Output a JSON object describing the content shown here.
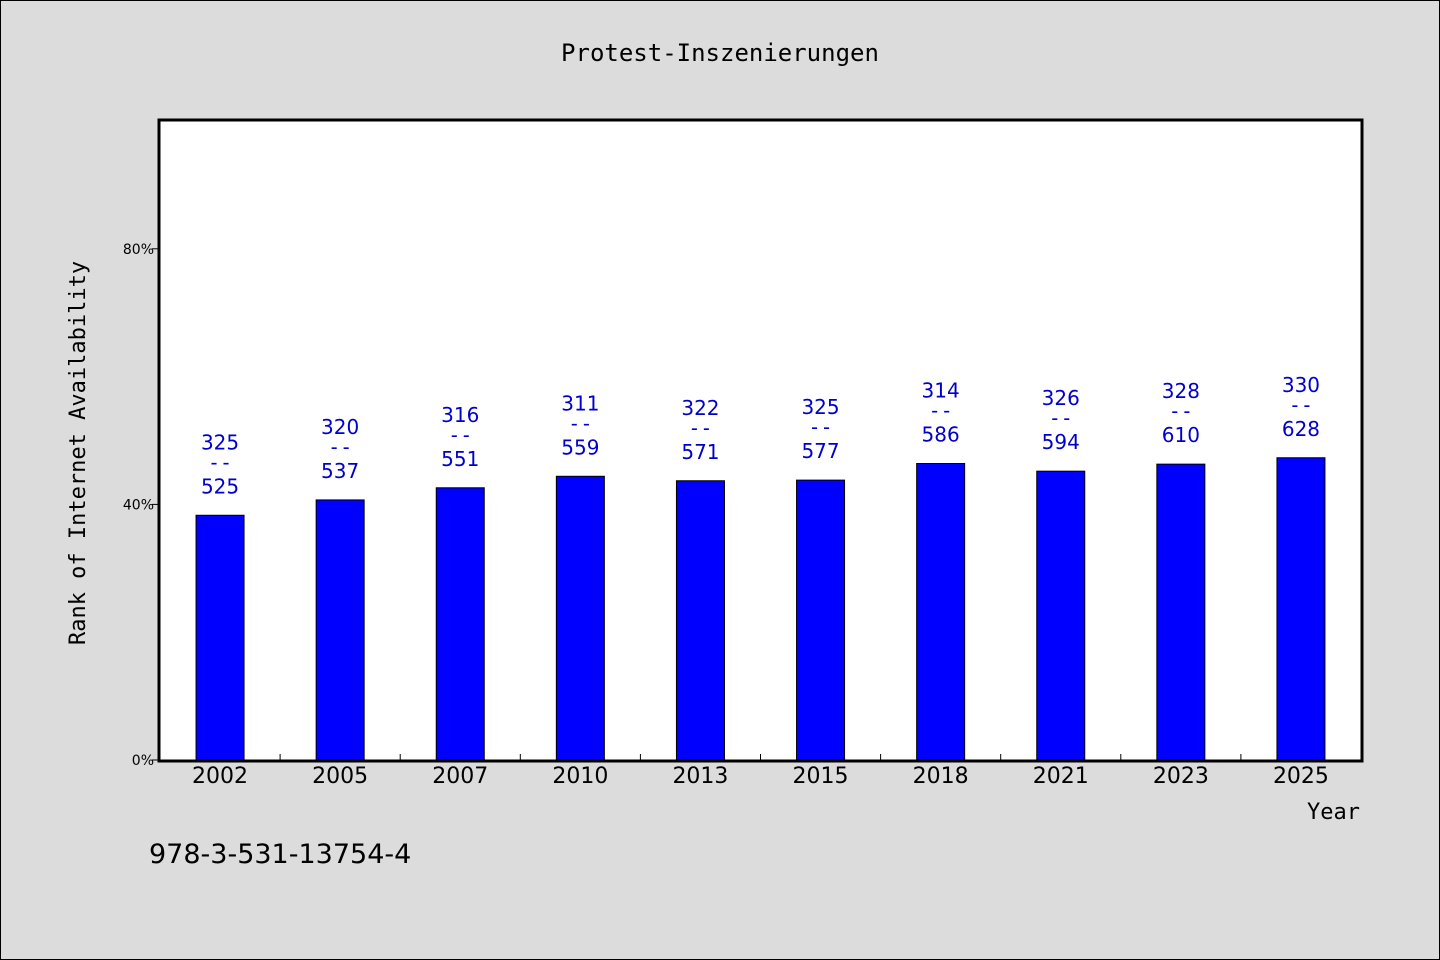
{
  "chart_data": {
    "type": "bar",
    "title": "Protest-Inszenierungen",
    "xlabel": "Year",
    "ylabel": "Rank of Internet Availability",
    "categories": [
      "2002",
      "2005",
      "2007",
      "2010",
      "2013",
      "2015",
      "2018",
      "2021",
      "2023",
      "2025"
    ],
    "values": [
      38.3,
      40.7,
      42.6,
      44.4,
      43.7,
      43.8,
      46.4,
      45.2,
      46.3,
      47.3
    ],
    "label_top": [
      "325",
      "320",
      "316",
      "311",
      "322",
      "325",
      "314",
      "326",
      "328",
      "330"
    ],
    "label_bottom": [
      "525",
      "537",
      "551",
      "559",
      "571",
      "577",
      "586",
      "594",
      "610",
      "628"
    ],
    "label_separator": "--",
    "ylim": [
      0,
      100
    ],
    "yticks": [
      0,
      40,
      80
    ],
    "ytick_labels": [
      "0%",
      "40%",
      "80%"
    ],
    "bar_color": "#0000ff",
    "label_color": "#0000cc",
    "grid": false,
    "legend": "none"
  },
  "footnote": "978-3-531-13754-4"
}
